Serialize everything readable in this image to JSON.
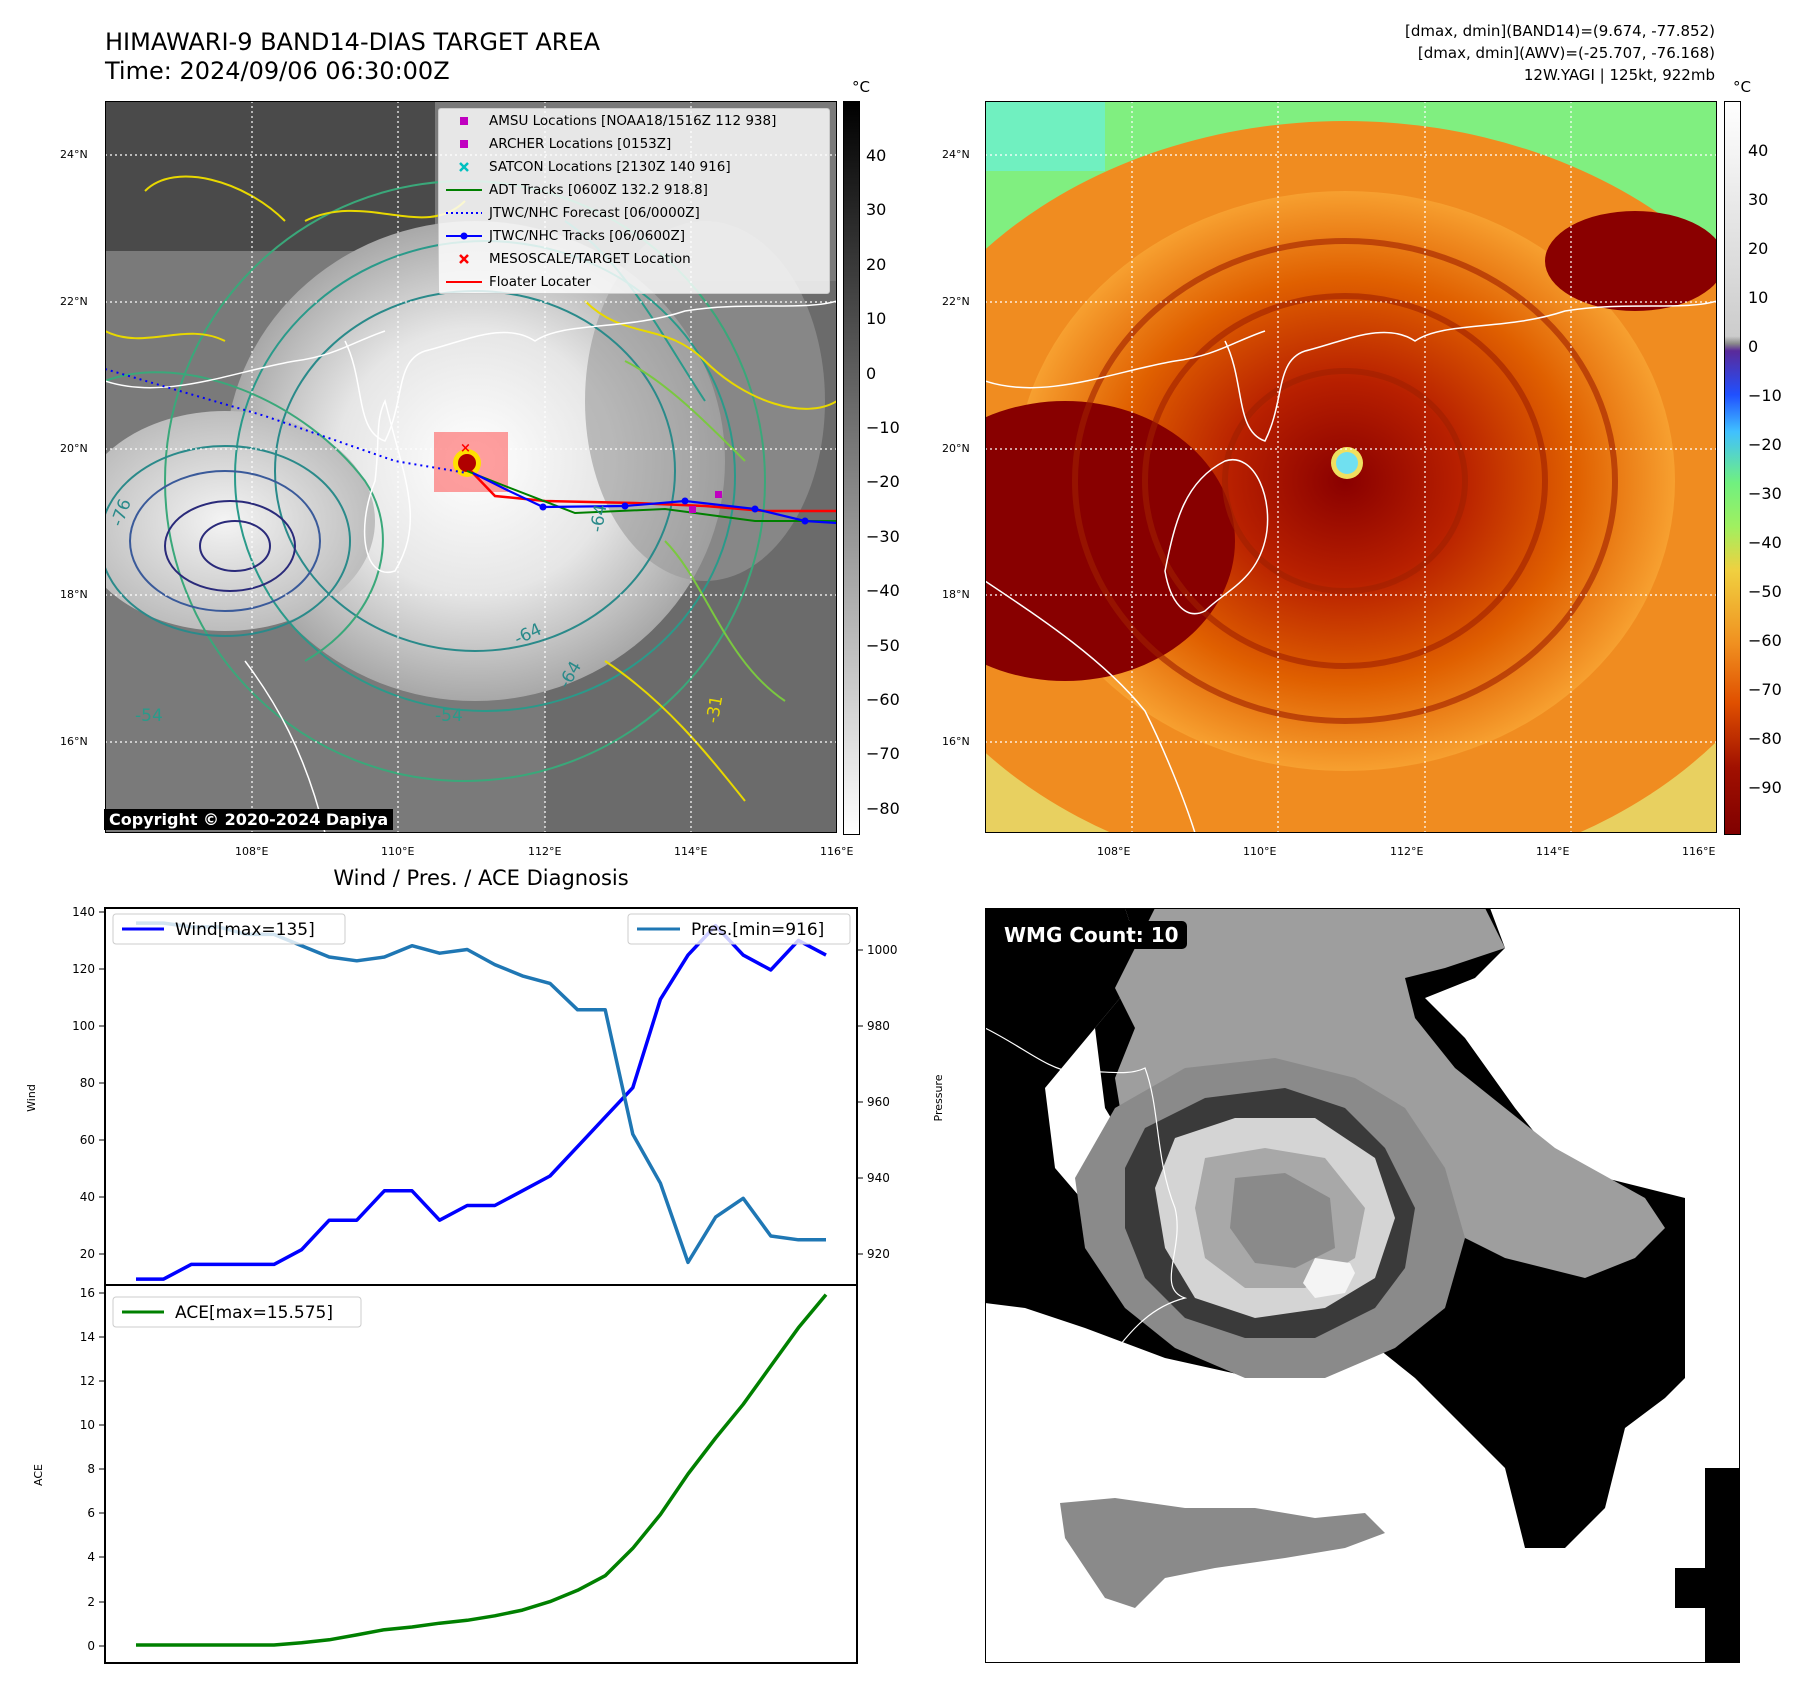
{
  "header": {
    "title_line1": "HIMAWARI-9 BAND14-DIAS TARGET AREA",
    "title_line2": "Time: 2024/09/06 06:30:00Z",
    "info_line1": "[dmax, dmin](BAND14)=(9.674, -77.852)",
    "info_line2": "[dmax, dmin](AWV)=(-25.707, -76.168)",
    "info_line3": "12W.YAGI | 125kt, 922mb"
  },
  "maps": {
    "lat_ticks": [
      "24°N",
      "22°N",
      "20°N",
      "18°N",
      "16°N"
    ],
    "lon_ticks": [
      "108°E",
      "110°E",
      "112°E",
      "114°E",
      "116°E"
    ],
    "unit": "°C",
    "colorbar_left_ticks": [
      "40",
      "30",
      "20",
      "10",
      "0",
      "−10",
      "−20",
      "−30",
      "−40",
      "−50",
      "−60",
      "−70",
      "−80"
    ],
    "colorbar_right_ticks": [
      "40",
      "30",
      "20",
      "10",
      "0",
      "−10",
      "−20",
      "−30",
      "−40",
      "−50",
      "−60",
      "−70",
      "−80",
      "−90"
    ],
    "contour_labels": [
      "-76",
      "-64",
      "-54",
      "-31",
      "-64",
      "-54",
      "-64"
    ],
    "copyright": "Copyright © 2020-2024 Dapiya",
    "legend": [
      {
        "label": "AMSU Locations [NOAA18/1516Z 112 938]",
        "symbol": "square",
        "color": "#c000c0"
      },
      {
        "label": "ARCHER Locations [0153Z]",
        "symbol": "square",
        "color": "#c000c0"
      },
      {
        "label": "SATCON Locations [2130Z 140 916]",
        "symbol": "x",
        "color": "#00c0c0"
      },
      {
        "label": "ADT Tracks [0600Z 132.2 918.8]",
        "symbol": "line",
        "color": "#008000"
      },
      {
        "label": "JTWC/NHC Forecast [06/0000Z]",
        "symbol": "dotted",
        "color": "#0000ff"
      },
      {
        "label": "JTWC/NHC Tracks [06/0600Z]",
        "symbol": "line-dot",
        "color": "#0000ff"
      },
      {
        "label": "MESOSCALE/TARGET Location",
        "symbol": "x",
        "color": "#ff0000"
      },
      {
        "label": "Floater Locater",
        "symbol": "line",
        "color": "#ff0000"
      }
    ]
  },
  "diagnosis": {
    "title": "Wind / Pres. / ACE Diagnosis",
    "wind_ylabel": "Wind",
    "pres_ylabel": "Pressure",
    "ace_ylabel": "ACE",
    "wind_legend": "Wind[max=135]",
    "pres_legend": "Pres.[min=916]",
    "ace_legend": "ACE[max=15.575]",
    "wind_ticks": [
      "140",
      "120",
      "100",
      "80",
      "60",
      "40",
      "20"
    ],
    "pres_ticks": [
      "1000",
      "980",
      "960",
      "940",
      "920"
    ],
    "ace_ticks": [
      "16",
      "14",
      "12",
      "10",
      "8",
      "6",
      "4",
      "2",
      "0"
    ]
  },
  "wmg": {
    "label": "WMG Count: 10"
  },
  "chart_data": [
    {
      "type": "line",
      "title": "Wind / Pres. / ACE Diagnosis",
      "ylabel": "Wind",
      "ylim": [
        13,
        141
      ],
      "series": [
        {
          "name": "Wind[max=135]",
          "color": "#0000ff",
          "values": [
            15,
            15,
            20,
            20,
            20,
            20,
            25,
            35,
            35,
            45,
            45,
            35,
            40,
            40,
            45,
            50,
            60,
            70,
            80,
            110,
            125,
            135,
            125,
            120,
            130,
            125
          ]
        }
      ]
    },
    {
      "type": "line",
      "ylabel": "Pressure",
      "ylim": [
        910,
        1010
      ],
      "series": [
        {
          "name": "Pres.[min=916]",
          "color": "#1f77b4",
          "values": [
            1006,
            1006,
            1005,
            1005,
            1003,
            1003,
            1000,
            997,
            996,
            997,
            1000,
            998,
            999,
            995,
            992,
            990,
            983,
            983,
            950,
            937,
            916,
            928,
            933,
            923,
            922,
            922
          ]
        }
      ]
    },
    {
      "type": "line",
      "ylabel": "ACE",
      "ylim": [
        -0.8,
        16
      ],
      "series": [
        {
          "name": "ACE[max=15.575]",
          "color": "#008000",
          "values": [
            0,
            0,
            0,
            0,
            0,
            0,
            0.1,
            0.23,
            0.45,
            0.68,
            0.8,
            0.97,
            1.1,
            1.3,
            1.55,
            1.93,
            2.43,
            3.08,
            4.3,
            5.8,
            7.6,
            9.2,
            10.7,
            12.4,
            14.1,
            15.575
          ]
        }
      ]
    }
  ]
}
